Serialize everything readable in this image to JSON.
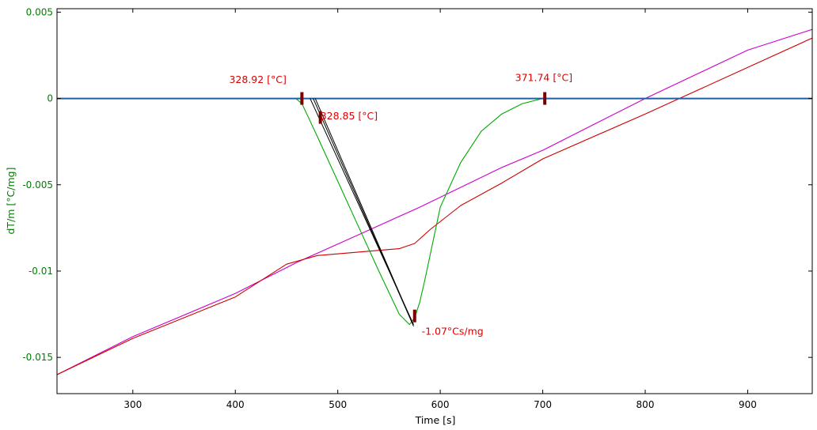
{
  "chart_data": {
    "type": "line",
    "xlabel": "Time [s]",
    "ylabel": "dT/m  [°C/mg]",
    "xlim": [
      226,
      963
    ],
    "ylim": [
      -0.0171,
      0.0052
    ],
    "x_ticks": [
      300,
      400,
      500,
      600,
      700,
      800,
      900
    ],
    "y_ticks": [
      0.005,
      0,
      -0.005,
      -0.01,
      -0.015
    ],
    "y_tick_labels": [
      "0.005",
      "0",
      "-0.005",
      "-0.01",
      "-0.015"
    ],
    "grid": false,
    "colors": {
      "axis_text_y": "#008000",
      "baseline": "#1f5fa8",
      "green": "#00aa00",
      "red": "#cc0000",
      "magenta": "#cc00cc",
      "tangent": "#000000",
      "marker": "#7a0000",
      "annotation": "#dd0000"
    },
    "series": [
      {
        "color": "#cc00cc",
        "x": [
          226,
          300,
          400,
          460,
          520,
          580,
          660,
          700,
          800,
          900,
          963
        ],
        "y": [
          -0.016,
          -0.0138,
          -0.0113,
          -0.0095,
          -0.0079,
          -0.0063,
          -0.004,
          -0.003,
          0.0,
          0.0028,
          0.004
        ]
      },
      {
        "color": "#cc0000",
        "x": [
          226,
          300,
          400,
          450,
          480,
          520,
          560,
          575,
          590,
          620,
          660,
          700,
          800,
          900,
          963
        ],
        "y": [
          -0.016,
          -0.0139,
          -0.0115,
          -0.0096,
          -0.0091,
          -0.0089,
          -0.0087,
          -0.0084,
          -0.0076,
          -0.0062,
          -0.0049,
          -0.0035,
          -0.0009,
          0.0018,
          0.0035
        ]
      },
      {
        "color": "#00aa00",
        "x": [
          226,
          459,
          465,
          480,
          500,
          520,
          540,
          560,
          570,
          575,
          580,
          585,
          590,
          600,
          620,
          640,
          660,
          680,
          700,
          963
        ],
        "y": [
          0.0,
          0.0,
          -0.0003,
          -0.0022,
          -0.0048,
          -0.0074,
          -0.01,
          -0.0125,
          -0.0131,
          -0.0127,
          -0.0118,
          -0.0105,
          -0.0091,
          -0.0063,
          -0.0037,
          -0.0019,
          -0.0009,
          -0.0003,
          0.0,
          0.0
        ]
      },
      {
        "color": "#1f5fa8",
        "x": [
          226,
          963
        ],
        "y": [
          0.0,
          0.0
        ]
      }
    ],
    "tangent_lines": [
      {
        "x": [
          473,
          574
        ],
        "y": [
          0.0,
          -0.0131
        ]
      },
      {
        "x": [
          476,
          574
        ],
        "y": [
          0.0,
          -0.0132
        ]
      },
      {
        "x": [
          478,
          572
        ],
        "y": [
          0.0,
          -0.0129
        ]
      }
    ],
    "markers": [
      {
        "x": 465,
        "y": 0.0
      },
      {
        "x": 483,
        "y": -0.0011
      },
      {
        "x": 575,
        "y": -0.0126
      },
      {
        "x": 702,
        "y": 0.0
      }
    ],
    "annotations": [
      {
        "text": "328.92 [°C]",
        "x": 422,
        "y": 0.0009
      },
      {
        "text": "328.85 [°C]",
        "x": 511,
        "y": -0.0012
      },
      {
        "text": "371.74 [°C]",
        "x": 701,
        "y": 0.001
      },
      {
        "text": "-1.07°Cs/mg",
        "x": 612,
        "y": -0.0137
      }
    ]
  }
}
